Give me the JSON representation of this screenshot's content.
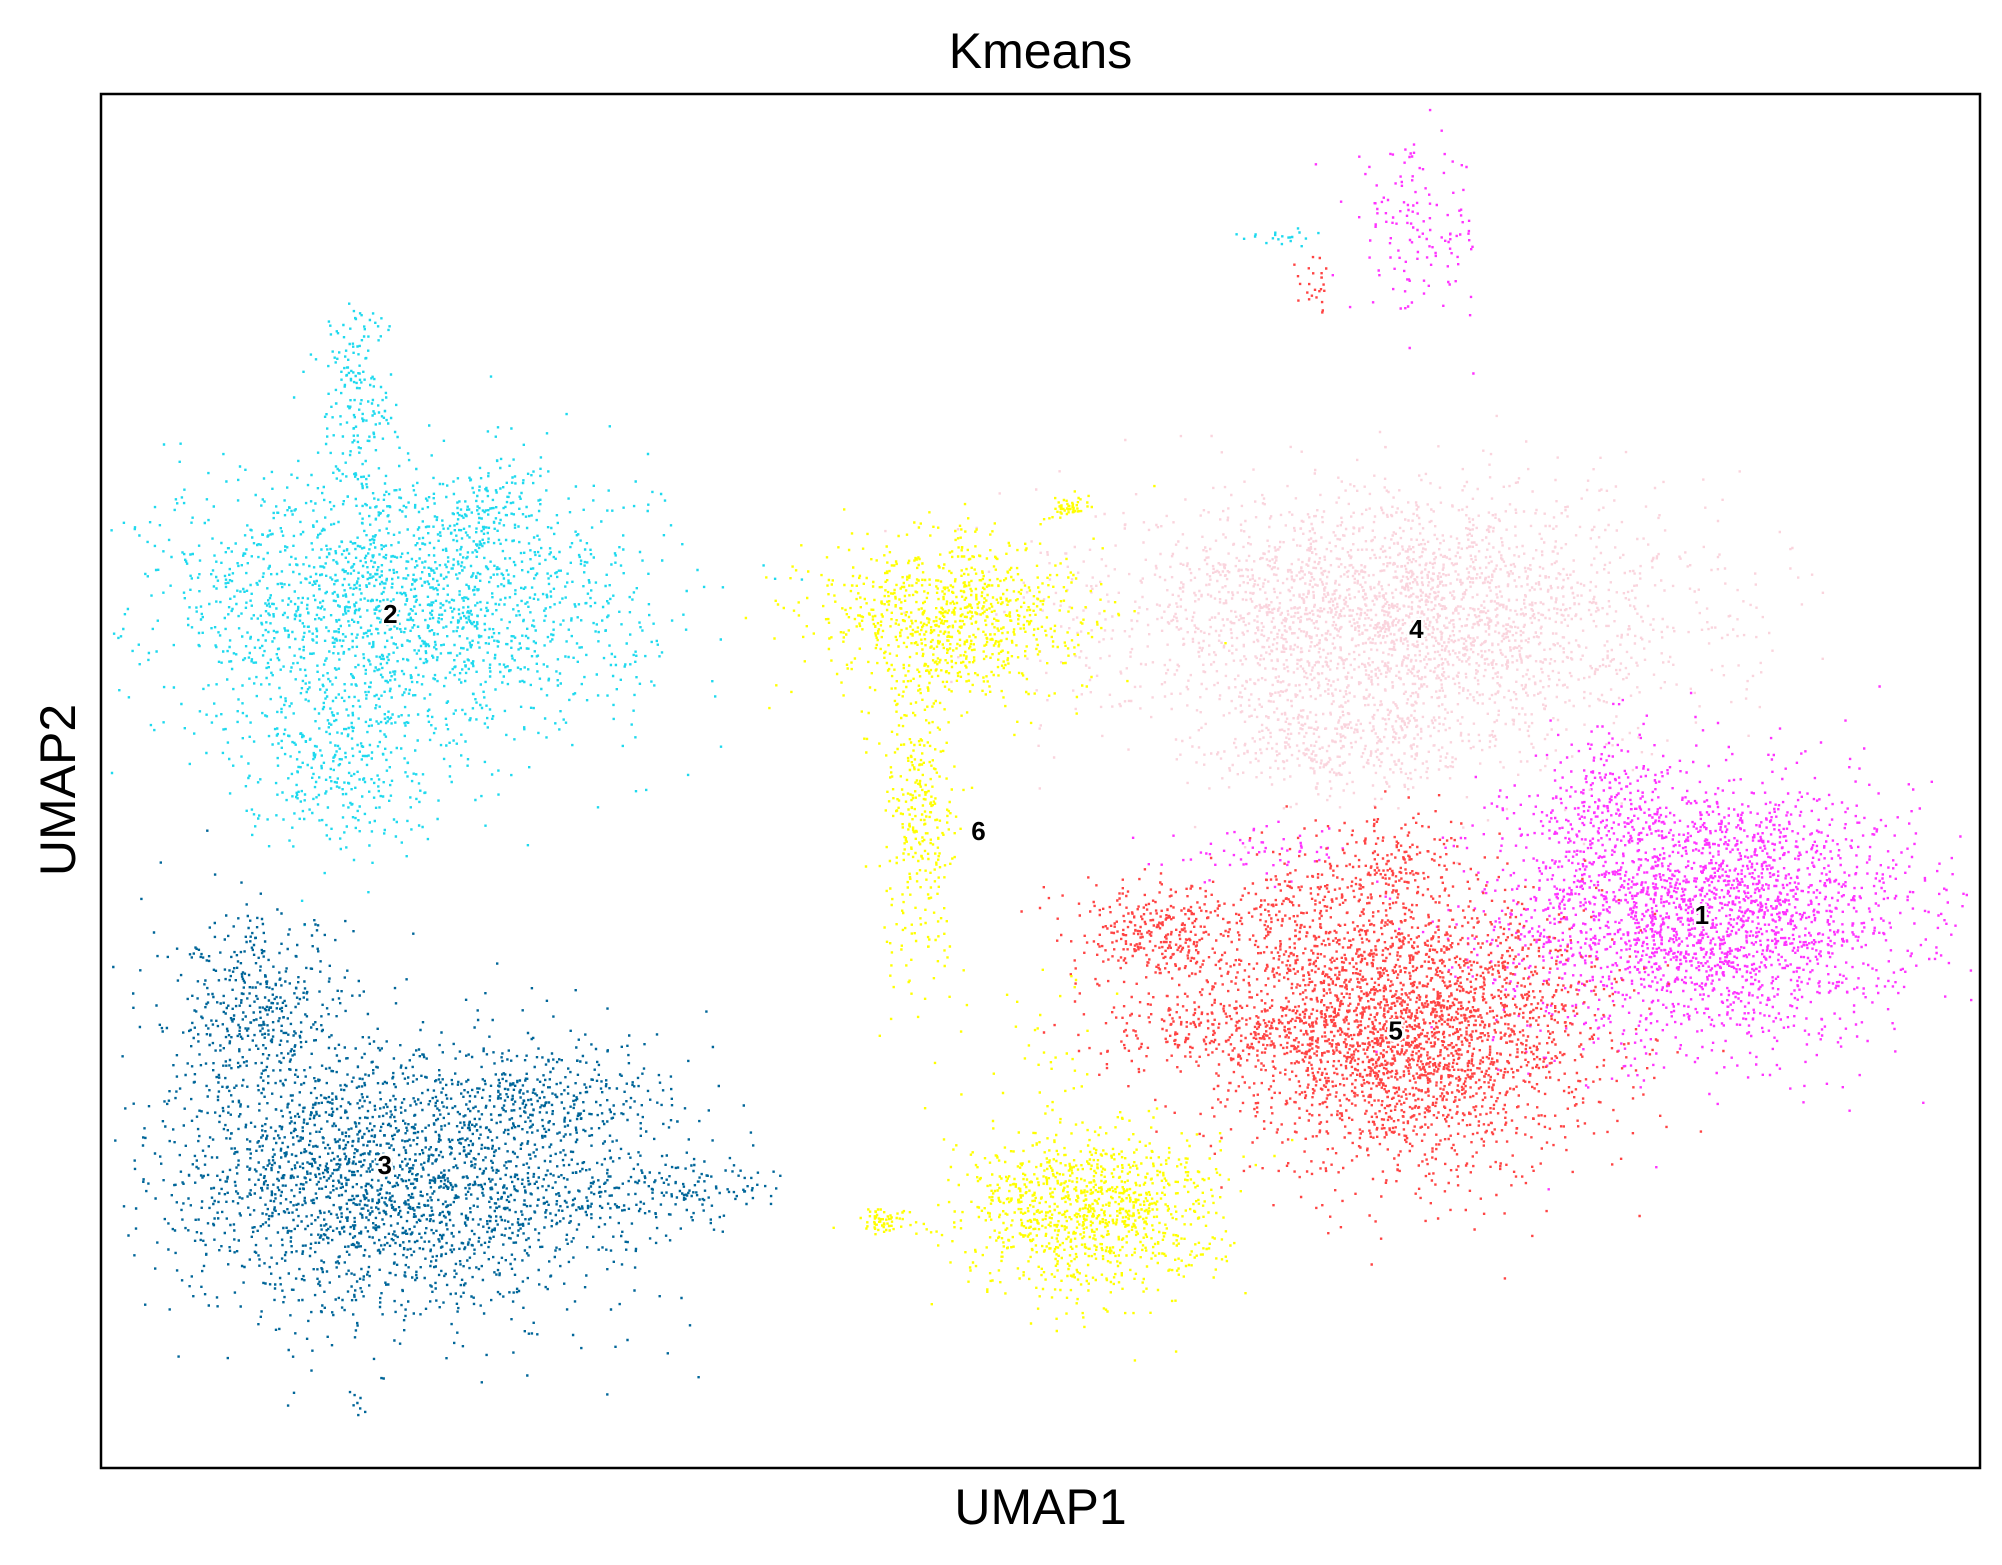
{
  "chart_data": {
    "type": "scatter",
    "title": "Kmeans",
    "xlabel": "UMAP1",
    "ylabel": "UMAP2",
    "xlim": [
      0,
      100
    ],
    "ylim": [
      0,
      100
    ],
    "grid": false,
    "ticks": "none",
    "legend": "on-data",
    "series": [
      {
        "name": "1",
        "color": "#ff33ff",
        "label_pos": [
          85.2,
          40.1
        ],
        "blobs": [
          {
            "cx": 85.5,
            "cy": 40.5,
            "sx": 5.5,
            "sy": 4.8,
            "n": 2600
          },
          {
            "cx": 80.0,
            "cy": 48.0,
            "sx": 2.5,
            "sy": 3.0,
            "n": 250
          },
          {
            "cx": 70.0,
            "cy": 90.0,
            "sx": 1.8,
            "sy": 3.0,
            "n": 140
          },
          {
            "cx": 61.5,
            "cy": 45.0,
            "sx": 2.5,
            "sy": 1.0,
            "n": 60
          }
        ]
      },
      {
        "name": "2",
        "color": "#1fd9ee",
        "label_pos": [
          15.4,
          62.0
        ],
        "blobs": [
          {
            "cx": 16.0,
            "cy": 63.0,
            "sx": 6.5,
            "sy": 5.0,
            "n": 2000
          },
          {
            "cx": 12.5,
            "cy": 52.0,
            "sx": 2.5,
            "sy": 3.5,
            "n": 350
          },
          {
            "cx": 13.5,
            "cy": 78.0,
            "sx": 1.0,
            "sy": 4.0,
            "n": 180
          },
          {
            "cx": 20.5,
            "cy": 70.0,
            "sx": 1.5,
            "sy": 1.5,
            "n": 80
          },
          {
            "cx": 62.5,
            "cy": 89.7,
            "sx": 1.3,
            "sy": 0.3,
            "n": 20
          }
        ]
      },
      {
        "name": "3",
        "color": "#006699",
        "label_pos": [
          15.1,
          21.9
        ],
        "blobs": [
          {
            "cx": 15.5,
            "cy": 21.0,
            "sx": 6.0,
            "sy": 5.0,
            "n": 2400
          },
          {
            "cx": 8.5,
            "cy": 33.0,
            "sx": 2.5,
            "sy": 3.5,
            "n": 450
          },
          {
            "cx": 29.0,
            "cy": 20.5,
            "sx": 3.5,
            "sy": 1.3,
            "n": 220
          },
          {
            "cx": 24.5,
            "cy": 27.0,
            "sx": 3.0,
            "sy": 2.0,
            "n": 250
          },
          {
            "cx": 13.5,
            "cy": 5.0,
            "sx": 0.3,
            "sy": 0.8,
            "n": 8
          }
        ]
      },
      {
        "name": "4",
        "color": "#fad4dd",
        "label_pos": [
          70.0,
          60.9
        ],
        "blobs": [
          {
            "cx": 69.0,
            "cy": 62.0,
            "sx": 7.5,
            "sy": 4.5,
            "n": 3000
          },
          {
            "cx": 65.5,
            "cy": 52.5,
            "sx": 4.0,
            "sy": 2.0,
            "n": 350
          }
        ]
      },
      {
        "name": "5",
        "color": "#ff4444",
        "label_pos": [
          68.9,
          31.7
        ],
        "blobs": [
          {
            "cx": 69.5,
            "cy": 32.0,
            "sx": 5.0,
            "sy": 5.0,
            "n": 3000
          },
          {
            "cx": 56.5,
            "cy": 39.0,
            "sx": 2.5,
            "sy": 1.8,
            "n": 350
          },
          {
            "cx": 59.0,
            "cy": 32.0,
            "sx": 3.5,
            "sy": 1.5,
            "n": 250
          },
          {
            "cx": 68.5,
            "cy": 44.0,
            "sx": 2.0,
            "sy": 2.0,
            "n": 180
          },
          {
            "cx": 64.0,
            "cy": 40.0,
            "sx": 2.0,
            "sy": 2.5,
            "n": 150
          },
          {
            "cx": 64.5,
            "cy": 86.5,
            "sx": 0.5,
            "sy": 1.0,
            "n": 25
          }
        ]
      },
      {
        "name": "6",
        "color": "#ffff00",
        "label_pos": [
          46.7,
          46.2
        ],
        "blobs": [
          {
            "cx": 45.0,
            "cy": 62.0,
            "sx": 3.5,
            "sy": 3.0,
            "n": 900
          },
          {
            "cx": 43.5,
            "cy": 48.0,
            "sx": 1.0,
            "sy": 6.5,
            "n": 350
          },
          {
            "cx": 52.5,
            "cy": 18.5,
            "sx": 3.3,
            "sy": 3.0,
            "n": 1100
          },
          {
            "cx": 41.5,
            "cy": 18.0,
            "sx": 0.9,
            "sy": 0.5,
            "n": 60
          },
          {
            "cx": 51.5,
            "cy": 70.0,
            "sx": 0.5,
            "sy": 0.5,
            "n": 50
          },
          {
            "cx": 50.0,
            "cy": 30.0,
            "sx": 2.5,
            "sy": 4.0,
            "n": 40
          }
        ]
      }
    ]
  }
}
